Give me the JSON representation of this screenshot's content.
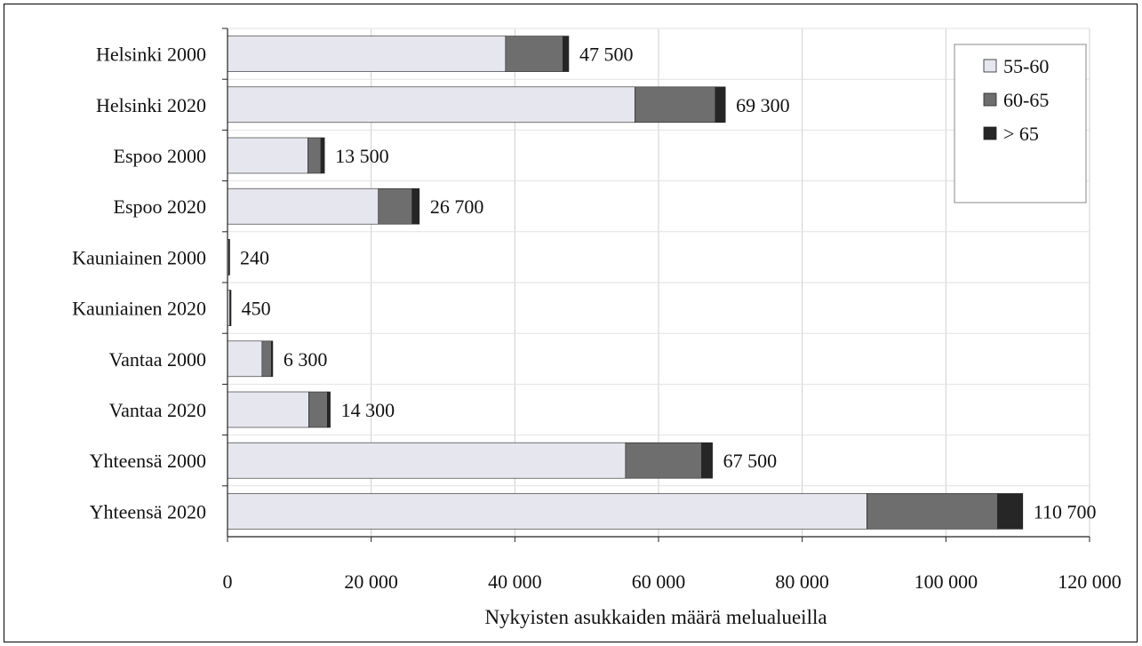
{
  "chart_data": {
    "type": "bar",
    "orientation": "horizontal",
    "stacked": true,
    "categories": [
      "Helsinki 2000",
      "Helsinki 2020",
      "Espoo 2000",
      "Espoo 2020",
      "Kauniainen 2000",
      "Kauniainen 2020",
      "Vantaa 2000",
      "Vantaa 2020",
      "Yhteensä 2000",
      "Yhteensä 2020"
    ],
    "series": [
      {
        "name": "55-60",
        "color": "#e6e6ee",
        "values": [
          38700,
          56700,
          11200,
          21000,
          170,
          300,
          4800,
          11300,
          55400,
          89000
        ]
      },
      {
        "name": "60-65",
        "color": "#6e6e6e",
        "values": [
          8000,
          11200,
          1800,
          4700,
          60,
          120,
          1300,
          2600,
          10600,
          18200
        ]
      },
      {
        "name": "> 65",
        "color": "#262626",
        "values": [
          800,
          1400,
          500,
          1000,
          10,
          30,
          200,
          400,
          1500,
          3500
        ]
      }
    ],
    "totals_labels": [
      "47 500",
      "69 300",
      "13 500",
      "26 700",
      "240",
      "450",
      "6 300",
      "14 300",
      "67 500",
      "110 700"
    ],
    "xticks": [
      0,
      20000,
      40000,
      60000,
      80000,
      100000,
      120000
    ],
    "xtick_labels": [
      "0",
      "20 000",
      "40 000",
      "60 000",
      "80 000",
      "100 000",
      "120 000"
    ],
    "xlim": [
      0,
      120000
    ],
    "xlabel": "Nykyisten asukkaiden määrä melualueilla",
    "title": "",
    "grid": true,
    "legend_position": "top-right"
  }
}
